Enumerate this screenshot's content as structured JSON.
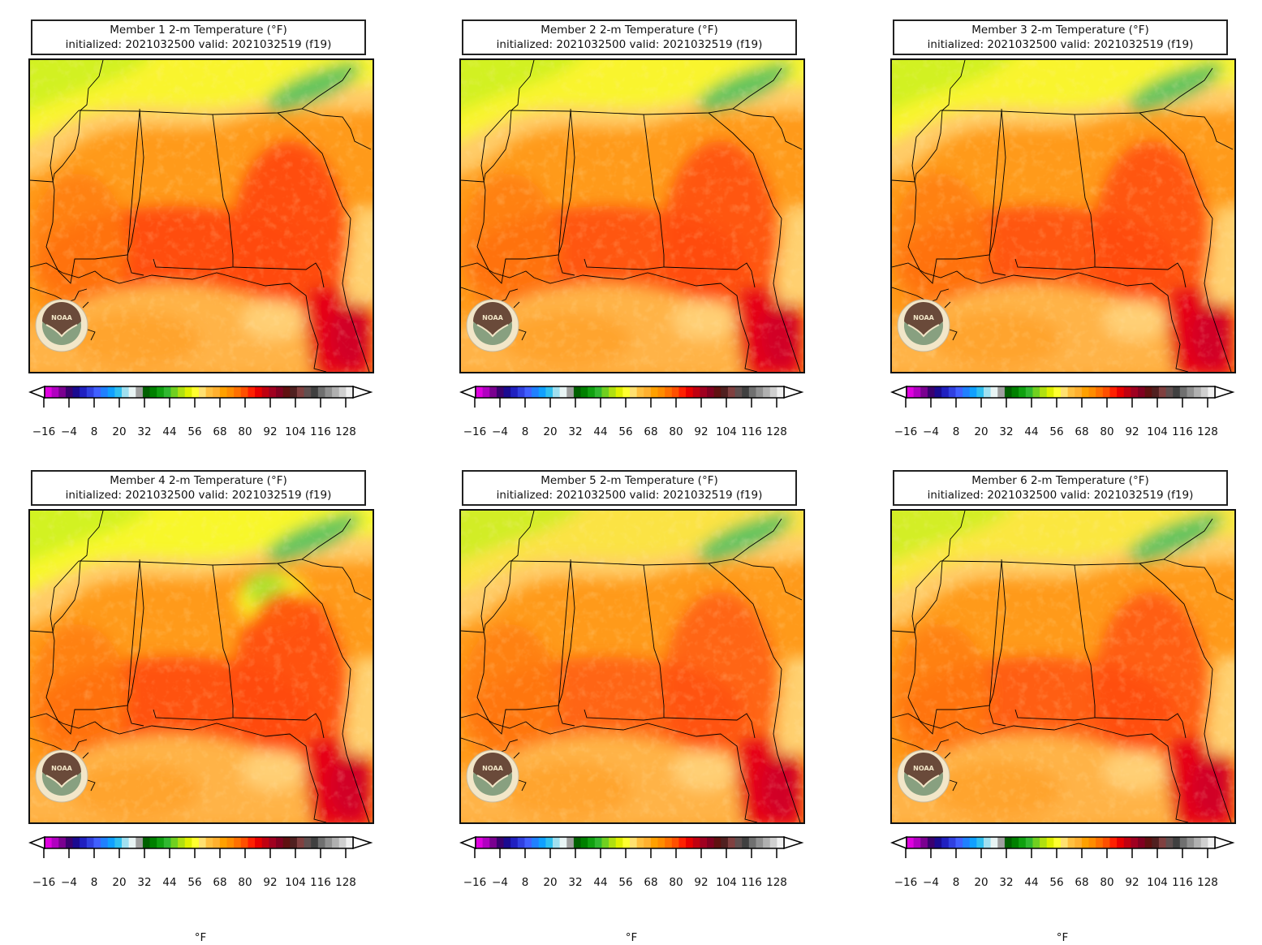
{
  "panels": [
    {
      "title": "Member 1 2-m Temperature (°F)",
      "subtitle": "initialized: 2021032500 valid: 2021032519 (f19)",
      "show_unit": false
    },
    {
      "title": "Member 2 2-m Temperature (°F)",
      "subtitle": "initialized: 2021032500 valid: 2021032519 (f19)",
      "show_unit": false
    },
    {
      "title": "Member 3 2-m Temperature (°F)",
      "subtitle": "initialized: 2021032500 valid: 2021032519 (f19)",
      "show_unit": false
    },
    {
      "title": "Member 4 2-m Temperature (°F)",
      "subtitle": "initialized: 2021032500 valid: 2021032519 (f19)",
      "show_unit": true
    },
    {
      "title": "Member 5 2-m Temperature (°F)",
      "subtitle": "initialized: 2021032500 valid: 2021032519 (f19)",
      "show_unit": true
    },
    {
      "title": "Member 6 2-m Temperature (°F)",
      "subtitle": "initialized: 2021032500 valid: 2021032519 (f19)",
      "show_unit": true
    }
  ],
  "colorbar": {
    "ticks": [
      "−16",
      "−4",
      "8",
      "20",
      "32",
      "44",
      "56",
      "68",
      "80",
      "92",
      "104",
      "116",
      "128"
    ],
    "unit": "°F",
    "colors": [
      "#e000e0",
      "#b000c0",
      "#7a0090",
      "#3a0070",
      "#1a0a90",
      "#2020c0",
      "#3040e0",
      "#4060ff",
      "#2080ff",
      "#10a0ff",
      "#30c0f0",
      "#a0e0f0",
      "#e8f4f4",
      "#a0a0a0",
      "#006000",
      "#008000",
      "#10a010",
      "#30b830",
      "#70d020",
      "#b0e010",
      "#e0f000",
      "#ffff30",
      "#ffe070",
      "#ffc040",
      "#ffb030",
      "#ffa000",
      "#ff8c00",
      "#ff7000",
      "#ff5000",
      "#ff2000",
      "#e80000",
      "#c00010",
      "#a00020",
      "#800020",
      "#601010",
      "#502020",
      "#804040",
      "#605050",
      "#404040",
      "#707070",
      "#909090",
      "#b0b0b0",
      "#d0d0d0",
      "#f0f0f0"
    ]
  },
  "logo": {
    "text": "NOAA",
    "icon": "noaa-logo-icon"
  },
  "colors": {
    "warm_orange": "#ff9a1a",
    "hot_red": "#ff4a10",
    "very_hot": "#e60012",
    "gulf": "#ffb347",
    "cool_yellow": "#f8f828",
    "cold_green": "#2e9e6e"
  }
}
